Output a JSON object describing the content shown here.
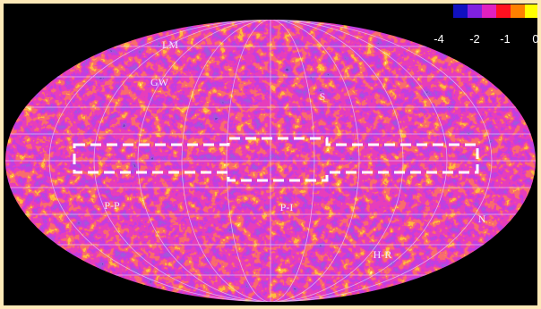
{
  "colorbar": {
    "ticks": [
      -4,
      -2,
      -1,
      0
    ]
  },
  "labels": {
    "lm": "LM",
    "gw": "GW",
    "s": "S",
    "pp": "P-P",
    "pi": "P-I",
    "n": "N",
    "hr": "H-R"
  }
}
